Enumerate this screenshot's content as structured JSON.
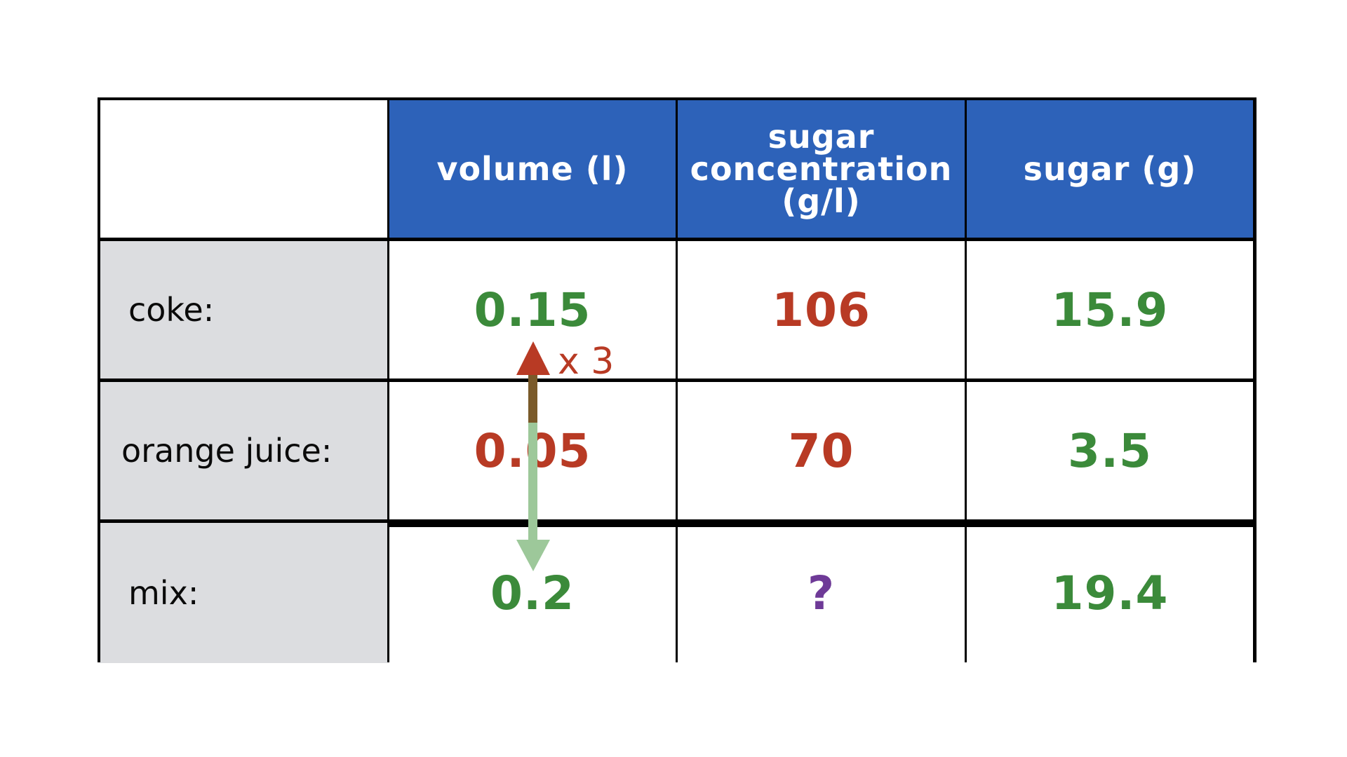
{
  "table": {
    "headers": [
      "",
      "volume (l)",
      "sugar\nconcentration\n(g/l)",
      "sugar (g)"
    ],
    "rows": [
      {
        "label": "coke:",
        "volume": "0.15",
        "concentration": "106",
        "sugar": "15.9"
      },
      {
        "label": "orange juice:",
        "volume": "0.05",
        "concentration": "70",
        "sugar": "3.5"
      },
      {
        "label": "mix:",
        "volume": "0.2",
        "concentration": "?",
        "sugar": "19.4"
      }
    ]
  },
  "annotation": {
    "multiplier_label": "x 3"
  },
  "colors": {
    "header_bg": "#2d62b9",
    "row_label_bg": "#dcdde0",
    "known_value": "#3b8a3a",
    "given_value": "#b83a24",
    "unknown_value": "#6e3a97",
    "up_arrow": "#7a5a2a",
    "down_arrow": "#9dc89a"
  }
}
